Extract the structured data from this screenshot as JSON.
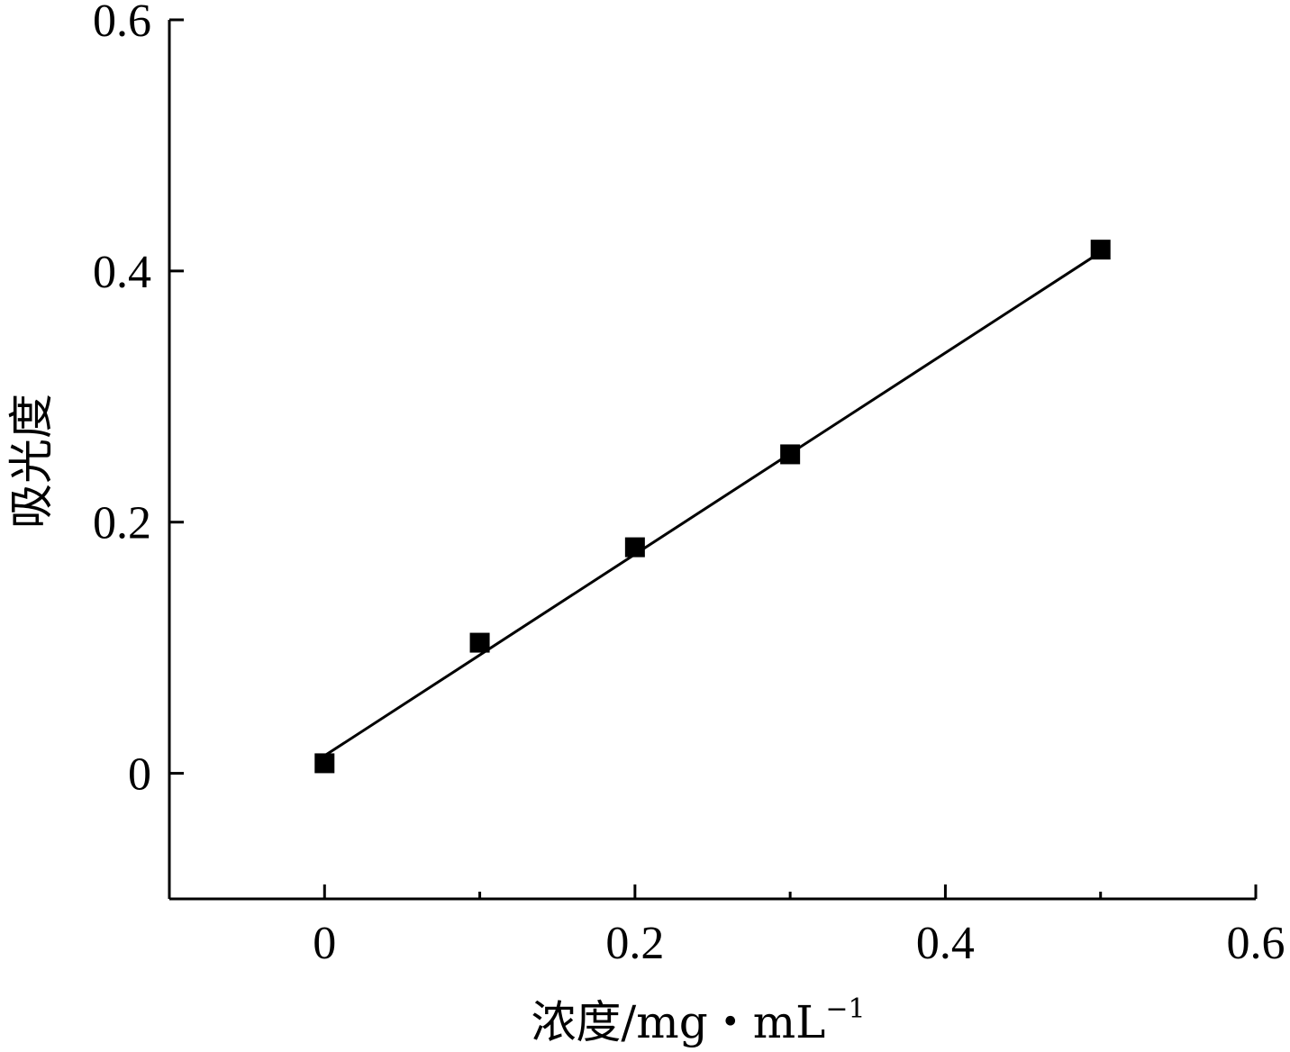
{
  "chart_data": {
    "type": "scatter",
    "xlabel": "浓度/mg・mL",
    "xlabel_sup": "−1",
    "ylabel": "吸光度",
    "xlim": [
      -0.1,
      0.6
    ],
    "ylim": [
      -0.1,
      0.6
    ],
    "x_ticks": [
      0,
      0.2,
      0.4,
      0.6
    ],
    "x_tick_labels": [
      "0",
      "0.2",
      "0.4",
      "0.6"
    ],
    "x_minor_ticks": [
      0.1,
      0.3,
      0.5
    ],
    "y_ticks": [
      0,
      0.2,
      0.4,
      0.6
    ],
    "y_tick_labels": [
      "0",
      "0.2",
      "0.4",
      "0.6"
    ],
    "grid": false,
    "marker": "square",
    "color": "#000000",
    "points": [
      {
        "x": 0.0,
        "y": 0.008
      },
      {
        "x": 0.1,
        "y": 0.104
      },
      {
        "x": 0.2,
        "y": 0.18
      },
      {
        "x": 0.3,
        "y": 0.254
      },
      {
        "x": 0.5,
        "y": 0.417
      }
    ],
    "fit_line": {
      "x": [
        0.0,
        0.5
      ],
      "y": [
        0.014,
        0.415
      ]
    }
  }
}
